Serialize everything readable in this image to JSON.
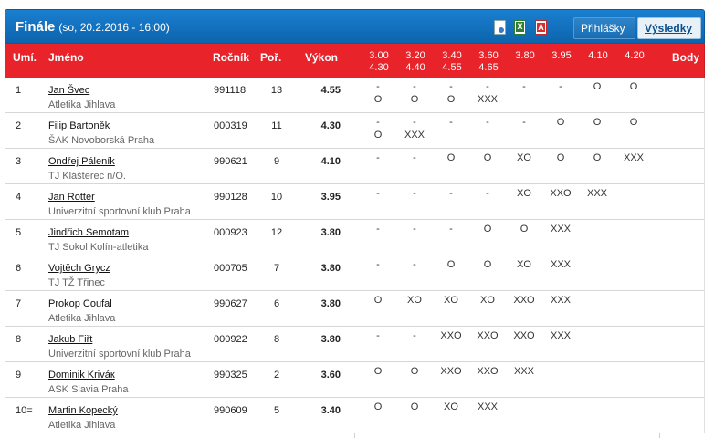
{
  "header": {
    "title": "Finále",
    "subtitle": "(so, 20.2.2016 - 16:00)",
    "tabs": [
      {
        "label": "Přihlášky",
        "active": false
      },
      {
        "label": "Výsledky",
        "active": true
      }
    ],
    "export_icons": [
      "document-icon",
      "excel-icon",
      "pdf-icon"
    ]
  },
  "columns": {
    "rank": "Umí.",
    "name": "Jméno",
    "birth": "Ročník",
    "order": "Poř.",
    "result": "Výkon",
    "heights": [
      [
        "3.00",
        "4.30"
      ],
      [
        "3.20",
        "4.40"
      ],
      [
        "3.40",
        "4.55"
      ],
      [
        "3.60",
        "4.65"
      ],
      [
        "3.80",
        ""
      ],
      [
        "3.95",
        ""
      ],
      [
        "4.10",
        ""
      ],
      [
        "4.20",
        ""
      ]
    ],
    "points": "Body"
  },
  "rows": [
    {
      "rank": "1",
      "name": "Jan Švec",
      "club": "Atletika Jihlava",
      "birth": "991118",
      "order": "13",
      "result": "4.55",
      "a1": [
        "-",
        "-",
        "-",
        "-",
        "-",
        "-",
        "O",
        "O"
      ],
      "a2": [
        "O",
        "O",
        "O",
        "XXX",
        "",
        "",
        "",
        ""
      ]
    },
    {
      "rank": "2",
      "name": "Filip Bartoněk",
      "club": "ŠAK Novoborská Praha",
      "birth": "000319",
      "order": "11",
      "result": "4.30",
      "a1": [
        "-",
        "-",
        "-",
        "-",
        "-",
        "O",
        "O",
        "O"
      ],
      "a2": [
        "O",
        "XXX",
        "",
        "",
        "",
        "",
        "",
        ""
      ]
    },
    {
      "rank": "3",
      "name": "Ondřej Páleník",
      "club": "TJ Klášterec n/O.",
      "birth": "990621",
      "order": "9",
      "result": "4.10",
      "a1": [
        "-",
        "-",
        "O",
        "O",
        "XO",
        "O",
        "O",
        "XXX"
      ],
      "a2": [
        "",
        "",
        "",
        "",
        "",
        "",
        "",
        ""
      ]
    },
    {
      "rank": "4",
      "name": "Jan Rotter",
      "club": "Univerzitní sportovní klub Praha",
      "birth": "990128",
      "order": "10",
      "result": "3.95",
      "a1": [
        "-",
        "-",
        "-",
        "-",
        "XO",
        "XXO",
        "XXX",
        ""
      ],
      "a2": [
        "",
        "",
        "",
        "",
        "",
        "",
        "",
        ""
      ]
    },
    {
      "rank": "5",
      "name": "Jindřich Semotam",
      "club": "TJ Sokol Kolín-atletika",
      "birth": "000923",
      "order": "12",
      "result": "3.80",
      "a1": [
        "-",
        "-",
        "-",
        "O",
        "O",
        "XXX",
        "",
        ""
      ],
      "a2": [
        "",
        "",
        "",
        "",
        "",
        "",
        "",
        ""
      ]
    },
    {
      "rank": "6",
      "name": "Vojtěch Grycz",
      "club": "TJ TŽ Třinec",
      "birth": "000705",
      "order": "7",
      "result": "3.80",
      "a1": [
        "-",
        "-",
        "O",
        "O",
        "XO",
        "XXX",
        "",
        ""
      ],
      "a2": [
        "",
        "",
        "",
        "",
        "",
        "",
        "",
        ""
      ]
    },
    {
      "rank": "7",
      "name": "Prokop Coufal",
      "club": "Atletika Jihlava",
      "birth": "990627",
      "order": "6",
      "result": "3.80",
      "a1": [
        "O",
        "XO",
        "XO",
        "XO",
        "XXO",
        "XXX",
        "",
        ""
      ],
      "a2": [
        "",
        "",
        "",
        "",
        "",
        "",
        "",
        ""
      ]
    },
    {
      "rank": "8",
      "name": "Jakub Fiřt",
      "club": "Univerzitní sportovní klub Praha",
      "birth": "000922",
      "order": "8",
      "result": "3.80",
      "a1": [
        "-",
        "-",
        "XXO",
        "XXO",
        "XXO",
        "XXX",
        "",
        ""
      ],
      "a2": [
        "",
        "",
        "",
        "",
        "",
        "",
        "",
        ""
      ]
    },
    {
      "rank": "9",
      "name": "Dominik Kriváк",
      "club": "ASK Slavia Praha",
      "birth": "990325",
      "order": "2",
      "result": "3.60",
      "a1": [
        "O",
        "O",
        "XXO",
        "XXO",
        "XXX",
        "",
        "",
        ""
      ],
      "a2": [
        "",
        "",
        "",
        "",
        "",
        "",
        "",
        ""
      ]
    },
    {
      "rank": "10=",
      "name": "Martin Kopecký",
      "club": "Atletika Jihlava",
      "birth": "990609",
      "order": "5",
      "result": "3.40",
      "a1": [
        "O",
        "O",
        "XO",
        "XXX",
        "",
        "",
        "",
        ""
      ],
      "a2": [
        "",
        "",
        "",
        "",
        "",
        "",
        "",
        ""
      ]
    }
  ]
}
